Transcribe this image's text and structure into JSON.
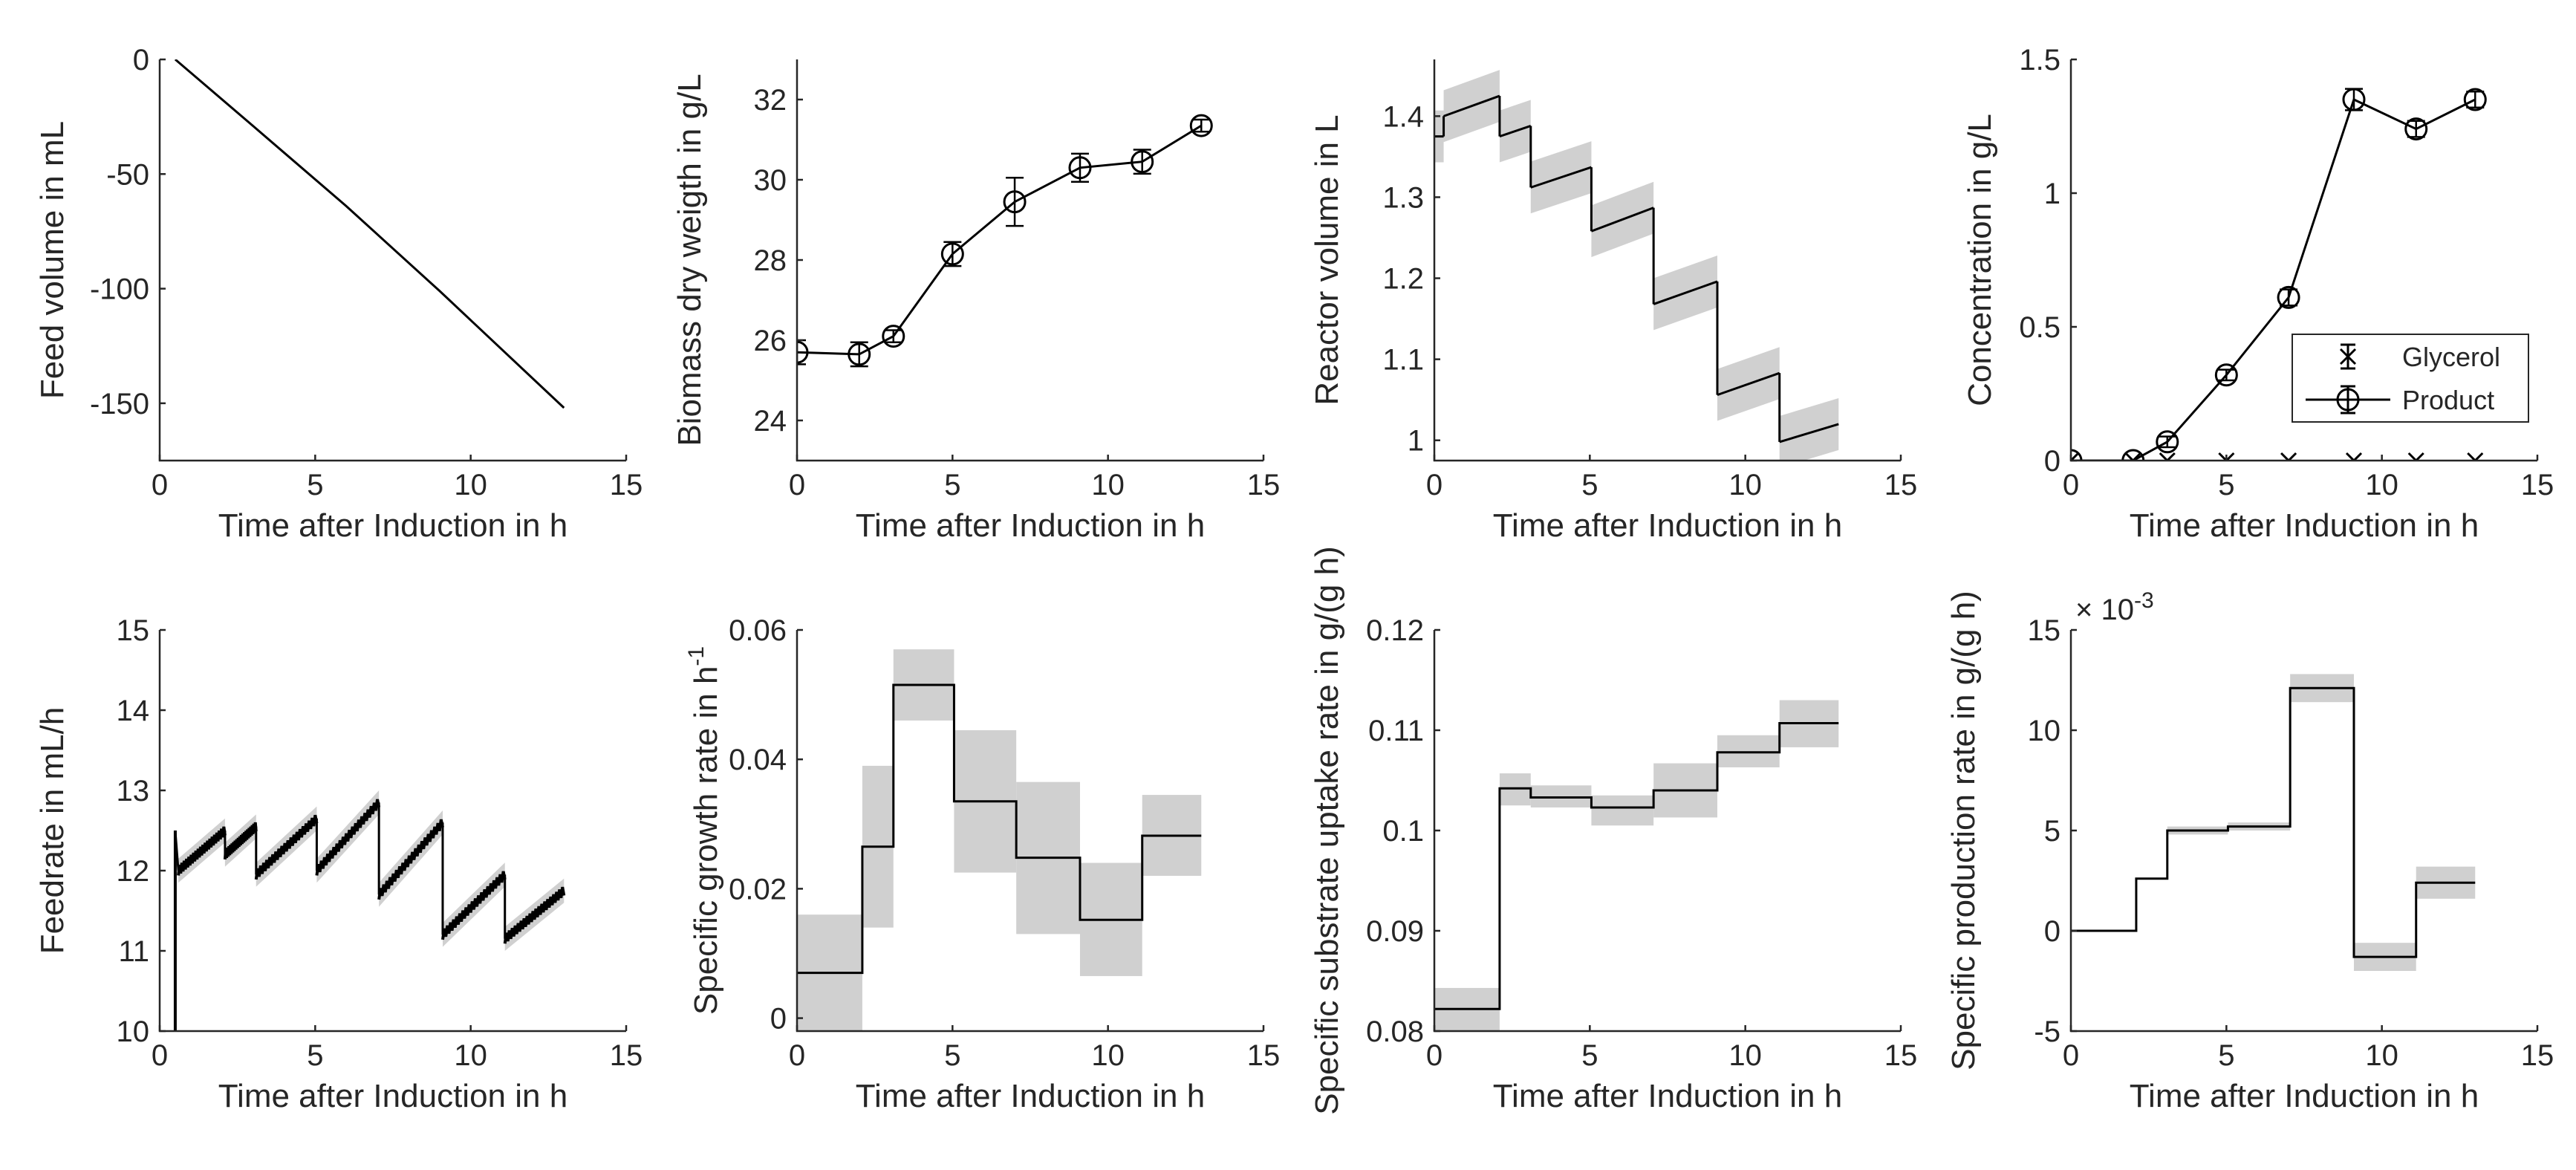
{
  "chart_data": [
    {
      "id": "feed-volume",
      "type": "line",
      "xlabel": "Time after Induction in h",
      "ylabel": "Feed volume in mL",
      "xlim": [
        0,
        15
      ],
      "ylim": [
        -175,
        0
      ],
      "xticks": [
        0,
        5,
        10,
        15
      ],
      "yticks": [
        0,
        -50,
        -100,
        -150
      ],
      "series": [
        {
          "name": "Feed volume",
          "x": [
            0.5,
            3,
            6,
            9,
            13
          ],
          "y": [
            0,
            -29,
            -64,
            -101,
            -152
          ]
        }
      ]
    },
    {
      "id": "biomass",
      "type": "line",
      "xlabel": "Time after Induction in h",
      "ylabel": "Biomass dry weigth in g/L",
      "xlim": [
        0,
        15
      ],
      "ylim": [
        23,
        33
      ],
      "xticks": [
        0,
        5,
        10,
        15
      ],
      "yticks": [
        24,
        26,
        28,
        30,
        32
      ],
      "series": [
        {
          "name": "Biomass",
          "markers": "circle",
          "x": [
            0,
            2,
            3.1,
            5,
            7,
            9.1,
            11.1,
            13
          ],
          "y": [
            25.7,
            25.65,
            26.1,
            28.15,
            29.45,
            30.3,
            30.45,
            31.35
          ],
          "err": [
            0.3,
            0.3,
            0.15,
            0.3,
            0.6,
            0.35,
            0.3,
            0.15
          ]
        }
      ]
    },
    {
      "id": "reactor-volume",
      "type": "line",
      "xlabel": "Time after Induction in h",
      "ylabel": "Reactor volume in L",
      "xlim": [
        0,
        15
      ],
      "ylim": [
        0.975,
        1.47
      ],
      "xticks": [
        0,
        5,
        10,
        15
      ],
      "yticks": [
        1,
        1.1,
        1.2,
        1.3,
        1.4
      ],
      "band": 0.032,
      "segments": [
        {
          "x": [
            0,
            0.3
          ],
          "y": [
            1.375,
            1.375
          ]
        },
        {
          "x": [
            0.3,
            2.1
          ],
          "y": [
            1.4,
            1.425
          ]
        },
        {
          "x": [
            2.1,
            3.1
          ],
          "y": [
            1.375,
            1.388
          ]
        },
        {
          "x": [
            3.1,
            5.05
          ],
          "y": [
            1.312,
            1.337
          ]
        },
        {
          "x": [
            5.05,
            7.05
          ],
          "y": [
            1.258,
            1.287
          ]
        },
        {
          "x": [
            7.05,
            9.1
          ],
          "y": [
            1.168,
            1.196
          ]
        },
        {
          "x": [
            9.1,
            11.1
          ],
          "y": [
            1.056,
            1.083
          ]
        },
        {
          "x": [
            11.1,
            13
          ],
          "y": [
            0.998,
            1.02
          ]
        }
      ]
    },
    {
      "id": "concentration",
      "type": "line",
      "xlabel": "Time after Induction in h",
      "ylabel": "Concentration in g/L",
      "xlim": [
        0,
        15
      ],
      "ylim": [
        0,
        1.5
      ],
      "xticks": [
        0,
        5,
        10,
        15
      ],
      "yticks": [
        0,
        0.5,
        1,
        1.5
      ],
      "legend": "middle-right",
      "series": [
        {
          "name": "Glycerol",
          "markers": "x",
          "x": [
            0,
            2,
            3.1,
            5,
            7,
            9.1,
            11.1,
            13
          ],
          "y": [
            0,
            0,
            0,
            0,
            0,
            0,
            0,
            0
          ]
        },
        {
          "name": "Product",
          "markers": "circle",
          "x": [
            0,
            2,
            3.1,
            5,
            7,
            9.1,
            11.1,
            13
          ],
          "y": [
            0,
            0,
            0.07,
            0.32,
            0.61,
            1.35,
            1.24,
            1.35
          ],
          "err": [
            0,
            0,
            0.02,
            0.02,
            0.03,
            0.04,
            0.03,
            0.03
          ]
        }
      ]
    },
    {
      "id": "feedrate",
      "type": "line",
      "xlabel": "Time after Induction in h",
      "ylabel": "Feedrate in mL/h",
      "xlim": [
        0,
        15
      ],
      "ylim": [
        10,
        15
      ],
      "xticks": [
        0,
        5,
        10,
        15
      ],
      "yticks": [
        10,
        11,
        12,
        13,
        14,
        15
      ],
      "band": 0.15,
      "segments": [
        {
          "x": [
            0.5,
            0.5
          ],
          "y": [
            10,
            12.5
          ]
        },
        {
          "x": [
            0.6,
            2.1
          ],
          "y": [
            12.0,
            12.5
          ]
        },
        {
          "x": [
            2.1,
            3.1
          ],
          "y": [
            12.2,
            12.55
          ]
        },
        {
          "x": [
            3.1,
            5.05
          ],
          "y": [
            11.95,
            12.65
          ]
        },
        {
          "x": [
            5.05,
            7.05
          ],
          "y": [
            12.0,
            12.85
          ]
        },
        {
          "x": [
            7.05,
            9.1
          ],
          "y": [
            11.7,
            12.6
          ]
        },
        {
          "x": [
            9.1,
            11.1
          ],
          "y": [
            11.2,
            11.95
          ]
        },
        {
          "x": [
            11.1,
            13
          ],
          "y": [
            11.15,
            11.75
          ]
        }
      ]
    },
    {
      "id": "growth-rate",
      "type": "line",
      "xlabel": "Time after Induction in h",
      "ylabel": "Specific growth rate in h",
      "ylabel_superscript": "-1",
      "xlim": [
        0,
        15
      ],
      "ylim": [
        -0.002,
        0.06
      ],
      "xticks": [
        0,
        5,
        10,
        15
      ],
      "yticks": [
        0,
        0.02,
        0.04,
        0.06
      ],
      "steps": {
        "edges": [
          0,
          2.1,
          3.1,
          5.05,
          7.05,
          9.1,
          11.1,
          13
        ],
        "values": [
          0.007,
          0.0265,
          0.0515,
          0.0335,
          0.0248,
          0.0152,
          0.0282
        ],
        "lower": [
          -0.002,
          0.014,
          0.046,
          0.0225,
          0.013,
          0.0065,
          0.022
        ],
        "upper": [
          0.016,
          0.039,
          0.057,
          0.0445,
          0.0365,
          0.024,
          0.0345
        ]
      }
    },
    {
      "id": "substrate-uptake",
      "type": "line",
      "xlabel": "Time after Induction in h",
      "ylabel": "Specific substrate uptake rate in g/(g h)",
      "xlim": [
        0,
        15
      ],
      "ylim": [
        0.08,
        0.12
      ],
      "xticks": [
        0,
        5,
        10,
        15
      ],
      "yticks": [
        0.08,
        0.09,
        0.1,
        0.11,
        0.12
      ],
      "steps": {
        "edges": [
          0,
          2.1,
          3.1,
          5.05,
          7.05,
          9.1,
          11.1,
          13
        ],
        "values": [
          0.0822,
          0.1042,
          0.1033,
          0.1023,
          0.104,
          0.1078,
          0.1107
        ],
        "lower": [
          0.08,
          0.1025,
          0.1023,
          0.1005,
          0.1013,
          0.1063,
          0.1083
        ],
        "upper": [
          0.0843,
          0.1057,
          0.1045,
          0.1035,
          0.1067,
          0.1095,
          0.113
        ]
      }
    },
    {
      "id": "production-rate",
      "type": "line",
      "xlabel": "Time after Induction in h",
      "ylabel": "Specific production rate in g/(g h)",
      "xlim": [
        0,
        15
      ],
      "ylim": [
        -5,
        15
      ],
      "xticks": [
        0,
        5,
        10,
        15
      ],
      "yticks": [
        -5,
        0,
        5,
        10,
        15
      ],
      "exponent_label": "× 10",
      "exponent": "-3",
      "steps": {
        "edges": [
          0,
          2.1,
          3.1,
          5.05,
          7.05,
          9.1,
          11.1,
          13
        ],
        "values": [
          0,
          2.6,
          5.0,
          5.2,
          12.1,
          -1.3,
          2.4
        ],
        "lower": [
          0,
          2.6,
          4.8,
          5.0,
          11.4,
          -2.0,
          1.6
        ],
        "upper": [
          0,
          2.6,
          5.2,
          5.4,
          12.8,
          -0.6,
          3.2
        ]
      }
    }
  ]
}
